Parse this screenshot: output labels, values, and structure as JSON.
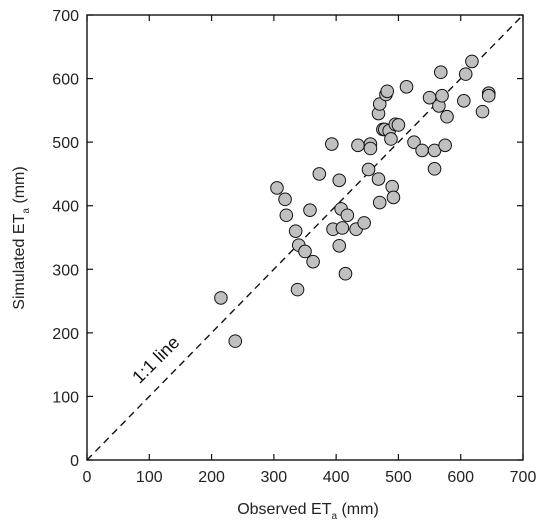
{
  "chart_data": {
    "type": "scatter",
    "title": "",
    "xlabel": {
      "main": "Observed ET",
      "sub": "a",
      "unit": " (mm)"
    },
    "ylabel": {
      "main": "Simulated ET",
      "sub": "a",
      "unit": " (mm)"
    },
    "xlim": [
      0,
      700
    ],
    "ylim": [
      0,
      700
    ],
    "xticks": [
      0,
      100,
      200,
      300,
      400,
      500,
      600,
      700
    ],
    "yticks": [
      0,
      100,
      200,
      300,
      400,
      500,
      600,
      700
    ],
    "grid": false,
    "reference_line": {
      "label": "1:1 line",
      "style": "dashed",
      "from": [
        0,
        0
      ],
      "to": [
        700,
        700
      ]
    },
    "marker_color": "#c0c0c0",
    "marker_edge": "#111111",
    "points": [
      [
        215,
        255
      ],
      [
        238,
        187
      ],
      [
        305,
        428
      ],
      [
        318,
        410
      ],
      [
        320,
        385
      ],
      [
        335,
        360
      ],
      [
        338,
        268
      ],
      [
        340,
        338
      ],
      [
        350,
        328
      ],
      [
        358,
        393
      ],
      [
        363,
        312
      ],
      [
        373,
        450
      ],
      [
        393,
        497
      ],
      [
        395,
        363
      ],
      [
        405,
        440
      ],
      [
        405,
        337
      ],
      [
        408,
        395
      ],
      [
        410,
        365
      ],
      [
        415,
        293
      ],
      [
        418,
        385
      ],
      [
        432,
        363
      ],
      [
        435,
        495
      ],
      [
        445,
        373
      ],
      [
        452,
        457
      ],
      [
        455,
        497
      ],
      [
        455,
        490
      ],
      [
        468,
        545
      ],
      [
        470,
        560
      ],
      [
        468,
        442
      ],
      [
        470,
        405
      ],
      [
        475,
        520
      ],
      [
        478,
        520
      ],
      [
        480,
        575
      ],
      [
        482,
        580
      ],
      [
        485,
        518
      ],
      [
        488,
        505
      ],
      [
        490,
        430
      ],
      [
        492,
        413
      ],
      [
        495,
        528
      ],
      [
        500,
        527
      ],
      [
        513,
        587
      ],
      [
        525,
        500
      ],
      [
        538,
        487
      ],
      [
        550,
        570
      ],
      [
        558,
        458
      ],
      [
        558,
        487
      ],
      [
        565,
        557
      ],
      [
        568,
        610
      ],
      [
        570,
        573
      ],
      [
        575,
        495
      ],
      [
        578,
        540
      ],
      [
        605,
        565
      ],
      [
        608,
        607
      ],
      [
        618,
        627
      ],
      [
        635,
        548
      ],
      [
        645,
        577
      ],
      [
        645,
        573
      ]
    ]
  }
}
